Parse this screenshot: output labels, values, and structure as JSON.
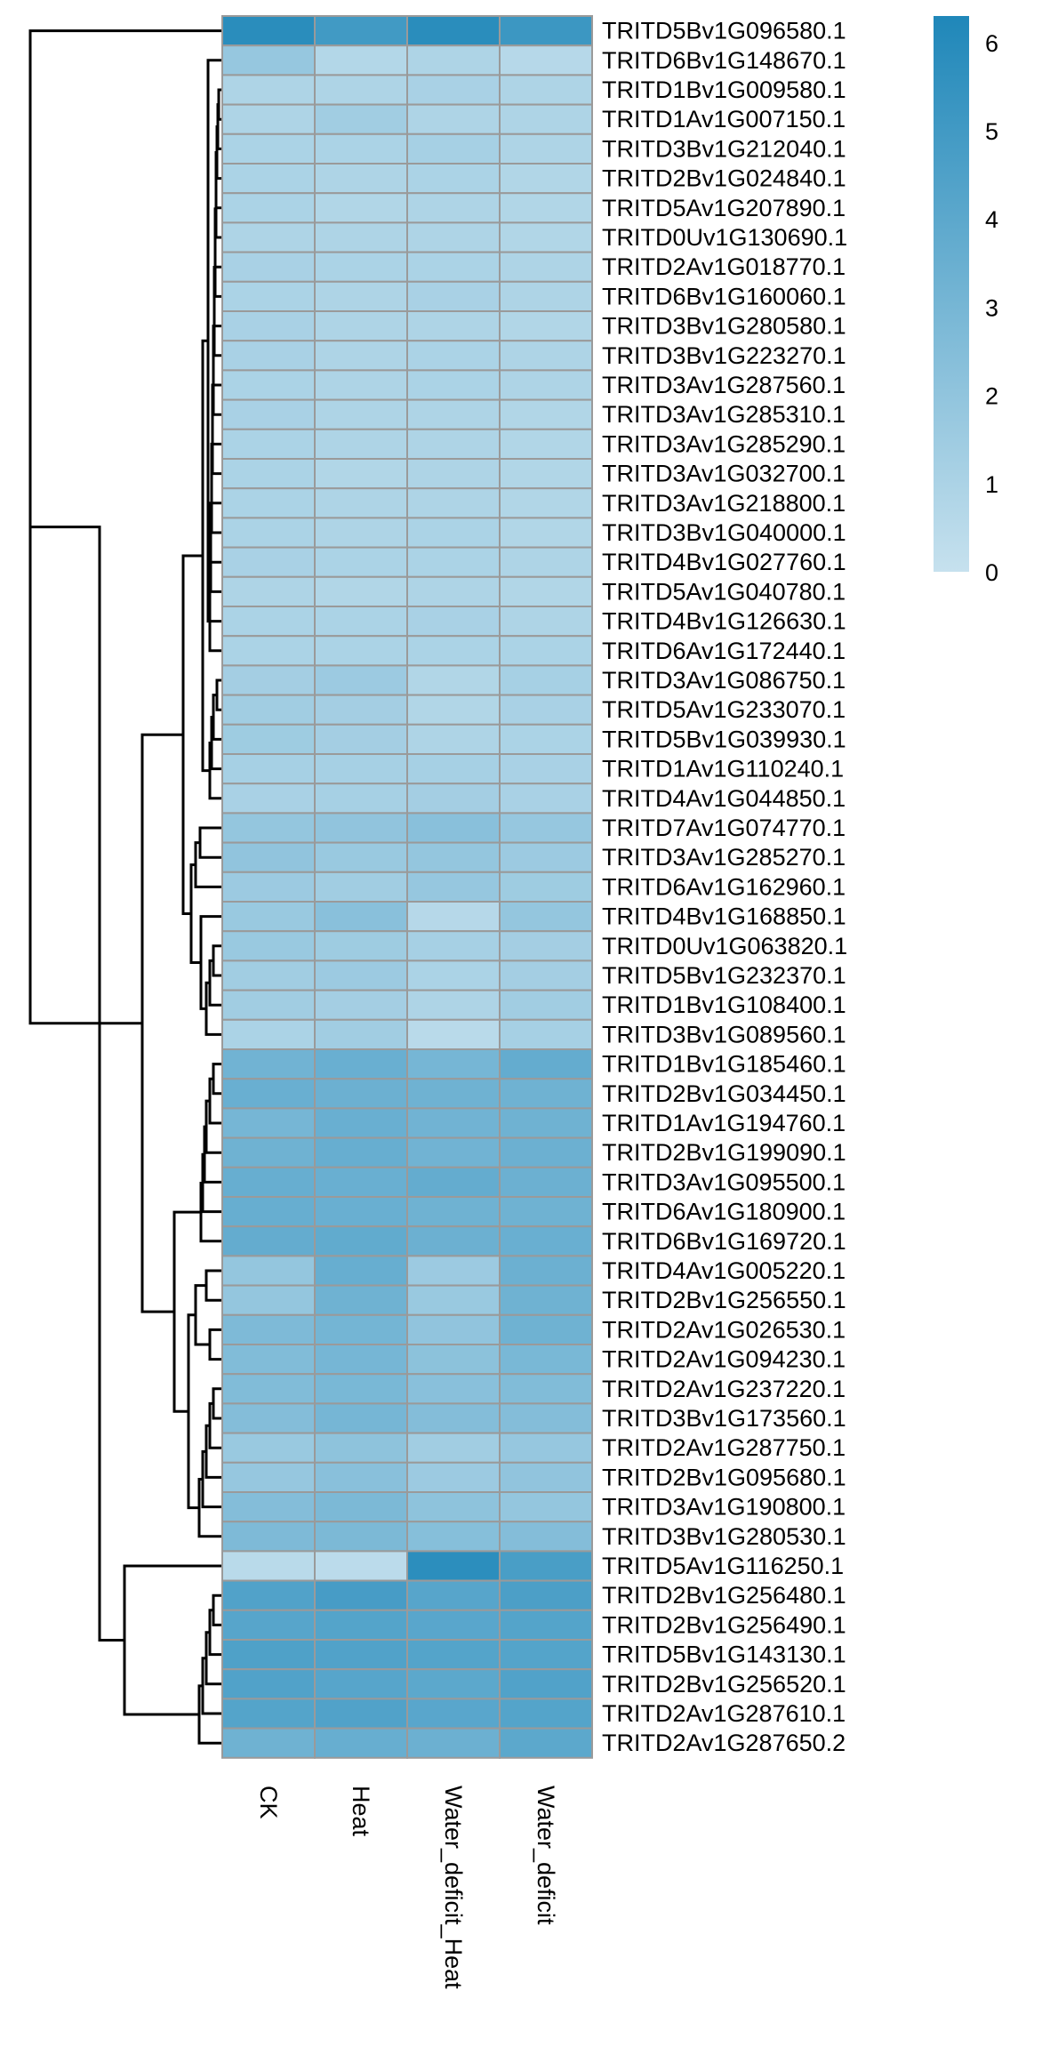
{
  "chart_data": {
    "type": "heatmap",
    "title": "",
    "xlabel": "",
    "ylabel": "",
    "columns": [
      "CK",
      "Heat",
      "Water_deficit_Heat",
      "Water_deficit"
    ],
    "rows": [
      "TRITD5Bv1G096580.1",
      "TRITD6Bv1G148670.1",
      "TRITD1Bv1G009580.1",
      "TRITD1Av1G007150.1",
      "TRITD3Bv1G212040.1",
      "TRITD2Bv1G024840.1",
      "TRITD5Av1G207890.1",
      "TRITD0Uv1G130690.1",
      "TRITD2Av1G018770.1",
      "TRITD6Bv1G160060.1",
      "TRITD3Bv1G280580.1",
      "TRITD3Bv1G223270.1",
      "TRITD3Av1G287560.1",
      "TRITD3Av1G285310.1",
      "TRITD3Av1G285290.1",
      "TRITD3Av1G032700.1",
      "TRITD3Av1G218800.1",
      "TRITD3Bv1G040000.1",
      "TRITD4Bv1G027760.1",
      "TRITD5Av1G040780.1",
      "TRITD4Bv1G126630.1",
      "TRITD6Av1G172440.1",
      "TRITD3Av1G086750.1",
      "TRITD5Av1G233070.1",
      "TRITD5Bv1G039930.1",
      "TRITD1Av1G110240.1",
      "TRITD4Av1G044850.1",
      "TRITD7Av1G074770.1",
      "TRITD3Av1G285270.1",
      "TRITD6Av1G162960.1",
      "TRITD4Bv1G168850.1",
      "TRITD0Uv1G063820.1",
      "TRITD5Bv1G232370.1",
      "TRITD1Bv1G108400.1",
      "TRITD3Bv1G089560.1",
      "TRITD1Bv1G185460.1",
      "TRITD2Bv1G034450.1",
      "TRITD1Av1G194760.1",
      "TRITD2Bv1G199090.1",
      "TRITD3Av1G095500.1",
      "TRITD6Av1G180900.1",
      "TRITD6Bv1G169720.1",
      "TRITD4Av1G005220.1",
      "TRITD2Bv1G256550.1",
      "TRITD2Av1G026530.1",
      "TRITD2Av1G094230.1",
      "TRITD2Av1G237220.1",
      "TRITD3Bv1G173560.1",
      "TRITD2Av1G287750.1",
      "TRITD2Bv1G095680.1",
      "TRITD3Av1G190800.1",
      "TRITD3Bv1G280530.1",
      "TRITD5Av1G116250.1",
      "TRITD2Bv1G256480.1",
      "TRITD2Bv1G256490.1",
      "TRITD5Bv1G143130.1",
      "TRITD2Bv1G256520.1",
      "TRITD2Av1G287610.1",
      "TRITD2Av1G287650.2"
    ],
    "values": [
      [
        5.9,
        5.0,
        5.9,
        5.2
      ],
      [
        1.8,
        0.7,
        0.9,
        0.6
      ],
      [
        0.9,
        0.9,
        1.1,
        0.9
      ],
      [
        0.9,
        1.4,
        0.9,
        0.9
      ],
      [
        1.0,
        1.0,
        1.2,
        0.9
      ],
      [
        1.0,
        0.9,
        1.0,
        0.8
      ],
      [
        1.0,
        0.8,
        0.9,
        0.8
      ],
      [
        0.9,
        0.9,
        0.9,
        0.8
      ],
      [
        1.1,
        1.0,
        1.0,
        0.9
      ],
      [
        1.0,
        0.9,
        1.1,
        0.9
      ],
      [
        1.1,
        0.9,
        0.9,
        0.8
      ],
      [
        1.1,
        0.9,
        1.0,
        0.9
      ],
      [
        1.0,
        0.9,
        1.0,
        0.9
      ],
      [
        1.1,
        0.9,
        0.9,
        0.8
      ],
      [
        1.0,
        0.9,
        0.9,
        0.8
      ],
      [
        1.0,
        0.8,
        0.9,
        0.8
      ],
      [
        1.0,
        0.9,
        0.9,
        0.8
      ],
      [
        1.0,
        0.9,
        1.0,
        0.8
      ],
      [
        1.1,
        1.0,
        1.0,
        0.9
      ],
      [
        0.9,
        0.8,
        0.9,
        0.8
      ],
      [
        1.0,
        1.0,
        1.1,
        0.9
      ],
      [
        1.0,
        1.0,
        1.0,
        1.0
      ],
      [
        1.3,
        1.6,
        0.8,
        1.2
      ],
      [
        1.4,
        1.3,
        0.8,
        1.1
      ],
      [
        1.5,
        1.3,
        0.9,
        1.0
      ],
      [
        1.2,
        1.2,
        1.2,
        1.1
      ],
      [
        1.1,
        1.2,
        1.3,
        1.1
      ],
      [
        1.9,
        2.0,
        2.3,
        1.8
      ],
      [
        2.0,
        1.7,
        1.9,
        1.6
      ],
      [
        1.6,
        1.4,
        1.8,
        1.5
      ],
      [
        1.7,
        2.3,
        0.6,
        1.9
      ],
      [
        1.7,
        1.5,
        1.2,
        1.3
      ],
      [
        1.4,
        1.6,
        1.0,
        1.3
      ],
      [
        1.4,
        1.3,
        0.9,
        1.4
      ],
      [
        1.0,
        1.4,
        0.5,
        1.2
      ],
      [
        3.2,
        3.5,
        3.0,
        3.7
      ],
      [
        3.5,
        3.4,
        3.3,
        3.3
      ],
      [
        3.0,
        3.5,
        3.2,
        3.3
      ],
      [
        3.3,
        3.6,
        3.2,
        3.4
      ],
      [
        3.6,
        3.5,
        3.7,
        3.4
      ],
      [
        3.6,
        3.5,
        3.3,
        3.3
      ],
      [
        3.7,
        3.8,
        3.4,
        3.5
      ],
      [
        1.9,
        3.6,
        1.6,
        3.4
      ],
      [
        1.9,
        3.3,
        1.7,
        3.3
      ],
      [
        2.7,
        3.1,
        2.0,
        3.3
      ],
      [
        2.6,
        3.0,
        2.2,
        2.9
      ],
      [
        2.6,
        2.9,
        2.3,
        2.6
      ],
      [
        2.5,
        3.0,
        2.5,
        2.5
      ],
      [
        1.7,
        2.1,
        1.4,
        1.8
      ],
      [
        1.8,
        2.3,
        1.6,
        2.0
      ],
      [
        2.5,
        2.8,
        2.1,
        1.9
      ],
      [
        2.7,
        2.8,
        2.4,
        2.5
      ],
      [
        0.5,
        0.4,
        5.8,
        4.7
      ],
      [
        4.4,
        4.8,
        4.2,
        4.6
      ],
      [
        4.2,
        4.3,
        4.1,
        4.3
      ],
      [
        4.5,
        4.4,
        4.3,
        4.3
      ],
      [
        4.4,
        4.2,
        4.0,
        4.4
      ],
      [
        4.3,
        4.4,
        4.1,
        4.3
      ],
      [
        3.3,
        3.6,
        3.4,
        4.0
      ]
    ],
    "legend": {
      "type": "color-scale",
      "range": [
        0,
        6.3
      ],
      "ticks": [
        0,
        1,
        2,
        3,
        4,
        5,
        6
      ],
      "color_low": "#c6e1ee",
      "color_high": "#1f87b9"
    },
    "colors": {
      "cell_border": "#9a9a9a",
      "dendrogram": "#000000",
      "background": "#ffffff"
    },
    "row_dendrogram": true,
    "column_dendrogram": false
  }
}
